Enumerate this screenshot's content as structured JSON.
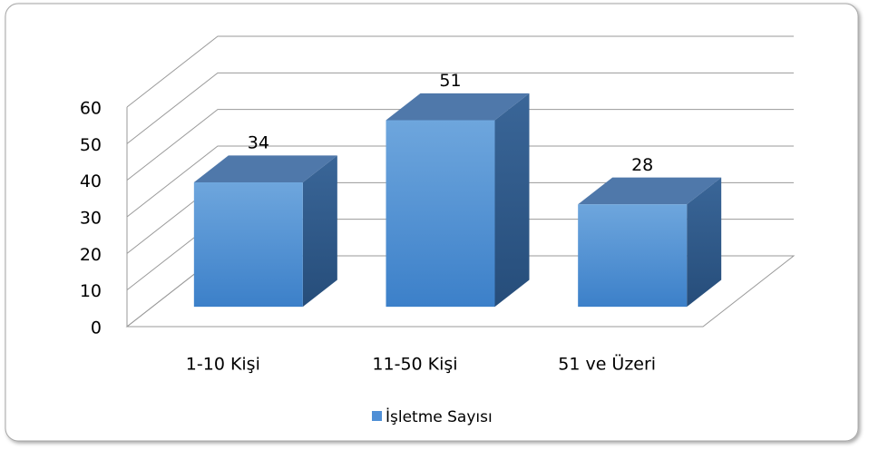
{
  "chart_data": {
    "type": "bar3d",
    "categories": [
      "1-10 Kişi",
      "11-50 Kişi",
      "51 ve Üzeri"
    ],
    "series": [
      {
        "name": "İşletme Sayısı",
        "color": "#4f8fd6",
        "values": [
          34,
          51,
          28
        ]
      }
    ],
    "ylim": [
      0,
      60
    ],
    "yticks": [
      0,
      10,
      20,
      30,
      40,
      50,
      60
    ],
    "grid": true,
    "legend": "bottom"
  }
}
